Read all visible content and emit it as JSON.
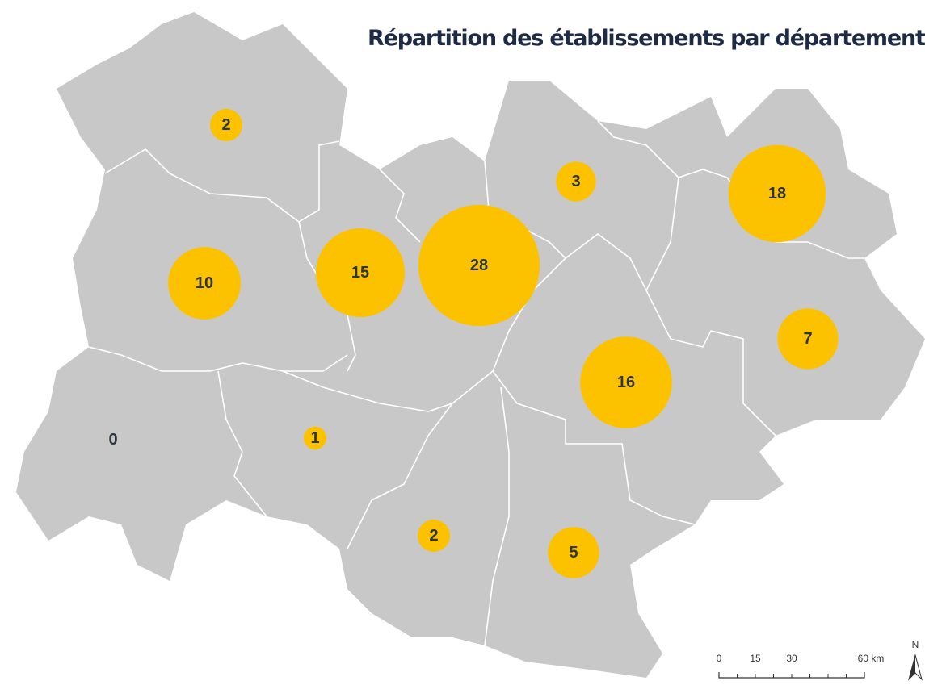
{
  "title": "Répartition des établissements par département",
  "departments": [
    {
      "value": 2
    },
    {
      "value": 10
    },
    {
      "value": 15
    },
    {
      "value": 28
    },
    {
      "value": 3
    },
    {
      "value": 18
    },
    {
      "value": 7
    },
    {
      "value": 16
    },
    {
      "value": 0
    },
    {
      "value": 1
    },
    {
      "value": 2
    },
    {
      "value": 5
    }
  ],
  "scale_bar": {
    "labels": [
      "0",
      "15",
      "30",
      "60 km"
    ]
  },
  "north": "N"
}
